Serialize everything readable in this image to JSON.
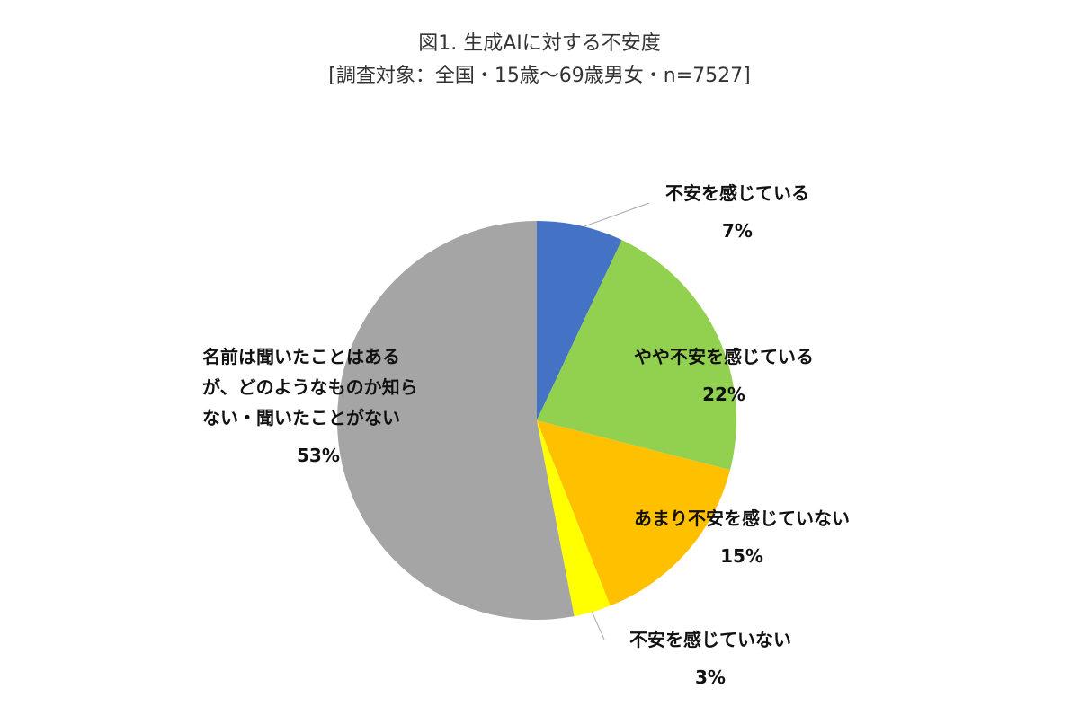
{
  "chart_data": {
    "type": "pie",
    "title": "図1. 生成AIに対する不安度",
    "subtitle": "[調査対象：全国・15歳～69歳男女・n=7527]",
    "categories": [
      "不安を感じている",
      "やや不安を感じている",
      "あまり不安を感じていない",
      "不安を感じていない",
      "名前は聞いたことはあるが、どのようなものか知らない・聞いたことがない"
    ],
    "values": [
      7,
      22,
      15,
      3,
      53
    ],
    "value_labels": [
      "7%",
      "22%",
      "15%",
      "3%",
      "53%"
    ],
    "colors": [
      "#4472c4",
      "#92d050",
      "#ffc000",
      "#ffff00",
      "#a5a5a5"
    ]
  }
}
